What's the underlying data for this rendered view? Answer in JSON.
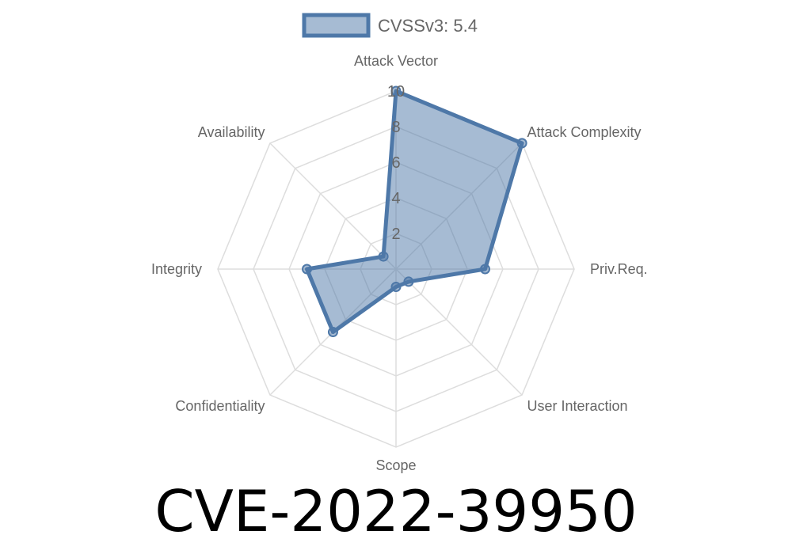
{
  "chart_data": {
    "type": "radar",
    "title": "CVE-2022-39950",
    "axes": [
      "Attack Vector",
      "Attack Complexity",
      "Priv.Req.",
      "User Interaction",
      "Scope",
      "Confidentiality",
      "Integrity",
      "Availability"
    ],
    "series": [
      {
        "name": "CVSSv3: 5.4",
        "values": [
          10,
          10,
          5,
          1,
          1,
          5,
          5,
          1
        ]
      }
    ],
    "rlim": [
      0,
      10
    ],
    "ticks": [
      "2",
      "4",
      "6",
      "8",
      "10"
    ],
    "tick_values": [
      2,
      4,
      6,
      8,
      10
    ],
    "grid": true,
    "legend": "top",
    "colors": {
      "stroke": "#4e78a8",
      "fill": "rgba(78,120,168,0.5)",
      "grid": "#dddddd"
    }
  }
}
